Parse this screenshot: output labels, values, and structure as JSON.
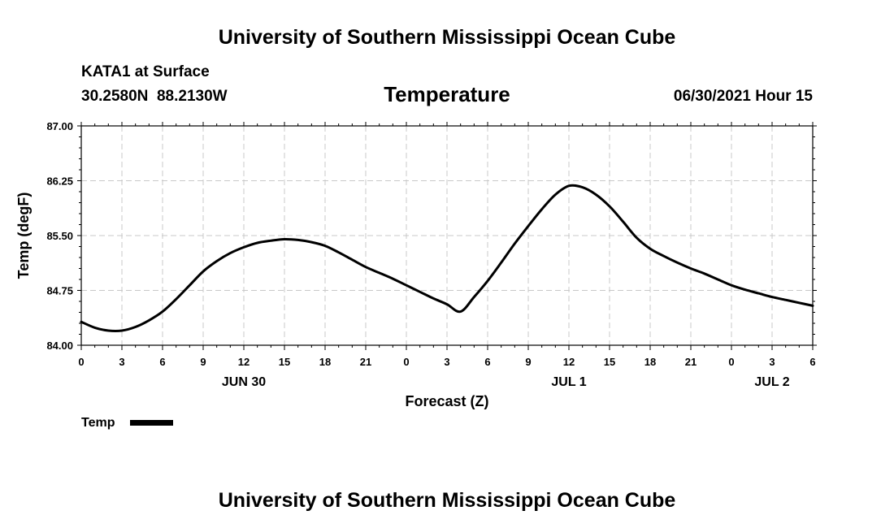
{
  "header": {
    "title": "University of Southern Mississippi Ocean Cube",
    "station": "KATA1 at Surface",
    "coords": "30.2580N  88.2130W",
    "timestamp": "06/30/2021 Hour 15"
  },
  "footer": {
    "title": "University of Southern Mississippi Ocean Cube"
  },
  "legend": {
    "label": "Temp",
    "color": "#000000"
  },
  "chart_data": {
    "type": "line",
    "title": "Temperature",
    "xlabel": "Forecast (Z)",
    "ylabel": "Temp (degF)",
    "xlim": [
      "06/30/2021 00Z",
      "07/02/2021 06Z"
    ],
    "ylim": [
      84.0,
      87.0
    ],
    "grid": true,
    "legend_position": "bottom-left",
    "y_ticks": [
      "84.00",
      "84.75",
      "85.50",
      "86.25",
      "87.00"
    ],
    "x_ticks": [
      "0",
      "3",
      "6",
      "9",
      "12",
      "15",
      "18",
      "21",
      "0",
      "3",
      "6",
      "9",
      "12",
      "15",
      "18",
      "21",
      "0",
      "3",
      "6"
    ],
    "date_labels": [
      {
        "label": "JUN 30",
        "at": "06/30/2021 12Z"
      },
      {
        "label": "JUL 1",
        "at": "07/01/2021 12Z"
      },
      {
        "label": "JUL 2",
        "at": "07/02/2021 03Z"
      }
    ],
    "series": [
      {
        "name": "Temp",
        "x": [
          "06/30/2021 00Z",
          "06/30/2021 01Z",
          "06/30/2021 02Z",
          "06/30/2021 03Z",
          "06/30/2021 04Z",
          "06/30/2021 05Z",
          "06/30/2021 06Z",
          "06/30/2021 07Z",
          "06/30/2021 08Z",
          "06/30/2021 09Z",
          "06/30/2021 10Z",
          "06/30/2021 11Z",
          "06/30/2021 12Z",
          "06/30/2021 13Z",
          "06/30/2021 14Z",
          "06/30/2021 15Z",
          "06/30/2021 16Z",
          "06/30/2021 17Z",
          "06/30/2021 18Z",
          "06/30/2021 19Z",
          "06/30/2021 20Z",
          "06/30/2021 21Z",
          "06/30/2021 22Z",
          "06/30/2021 23Z",
          "07/01/2021 00Z",
          "07/01/2021 01Z",
          "07/01/2021 02Z",
          "07/01/2021 03Z",
          "07/01/2021 04Z",
          "07/01/2021 05Z",
          "07/01/2021 06Z",
          "07/01/2021 07Z",
          "07/01/2021 08Z",
          "07/01/2021 09Z",
          "07/01/2021 10Z",
          "07/01/2021 11Z",
          "07/01/2021 12Z",
          "07/01/2021 13Z",
          "07/01/2021 14Z",
          "07/01/2021 15Z",
          "07/01/2021 16Z",
          "07/01/2021 17Z",
          "07/01/2021 18Z",
          "07/01/2021 19Z",
          "07/01/2021 20Z",
          "07/01/2021 21Z",
          "07/01/2021 22Z",
          "07/01/2021 23Z",
          "07/02/2021 00Z",
          "07/02/2021 01Z",
          "07/02/2021 02Z",
          "07/02/2021 03Z",
          "07/02/2021 04Z",
          "07/02/2021 05Z",
          "07/02/2021 06Z"
        ],
        "values": [
          84.32,
          84.24,
          84.2,
          84.2,
          84.25,
          84.34,
          84.46,
          84.63,
          84.82,
          85.01,
          85.15,
          85.26,
          85.34,
          85.4,
          85.43,
          85.45,
          85.44,
          85.41,
          85.36,
          85.27,
          85.17,
          85.07,
          84.99,
          84.91,
          84.82,
          84.73,
          84.64,
          84.56,
          84.46,
          84.66,
          84.88,
          85.13,
          85.39,
          85.63,
          85.86,
          86.06,
          86.18,
          86.16,
          86.06,
          85.9,
          85.69,
          85.47,
          85.32,
          85.22,
          85.13,
          85.05,
          84.98,
          84.9,
          84.82,
          84.76,
          84.71,
          84.66,
          84.62,
          84.58,
          84.54
        ]
      }
    ]
  }
}
